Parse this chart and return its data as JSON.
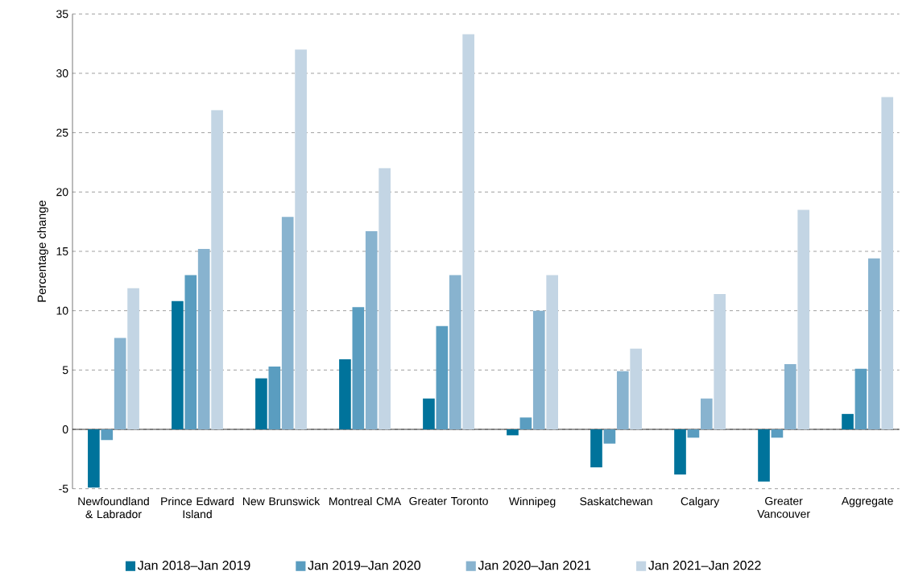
{
  "chart_data": {
    "type": "bar",
    "ylabel": "Percentage change",
    "categories": [
      "Newfoundland & Labrador",
      "Prince Edward Island",
      "New Brunswick",
      "Montreal CMA",
      "Greater Toronto",
      "Winnipeg",
      "Saskatchewan",
      "Calgary",
      "Greater Vancouver",
      "Aggregate"
    ],
    "series": [
      {
        "name": "Jan 2018–Jan 2019",
        "color": "#00739b",
        "values": [
          -4.9,
          10.8,
          4.3,
          5.9,
          2.6,
          -0.5,
          -3.2,
          -3.8,
          -4.4,
          1.3
        ]
      },
      {
        "name": "Jan 2019–Jan 2020",
        "color": "#5a9dc0",
        "values": [
          -0.9,
          13.0,
          5.3,
          10.3,
          8.7,
          1.0,
          -1.2,
          -0.7,
          -0.7,
          5.1
        ]
      },
      {
        "name": "Jan 2020–Jan 2021",
        "color": "#88b3cf",
        "values": [
          7.7,
          15.2,
          17.9,
          16.7,
          13.0,
          10.0,
          4.9,
          2.6,
          5.5,
          14.4
        ]
      },
      {
        "name": "Jan 2021–Jan 2022",
        "color": "#c3d5e4",
        "values": [
          11.9,
          26.9,
          32.0,
          22.0,
          33.3,
          13.0,
          6.8,
          11.4,
          18.5,
          28.0
        ]
      }
    ],
    "ylim": [
      -5,
      35
    ],
    "yticks": [
      -5,
      0,
      5,
      10,
      15,
      20,
      25,
      30,
      35
    ],
    "grid": "y",
    "legend": "bottom"
  }
}
